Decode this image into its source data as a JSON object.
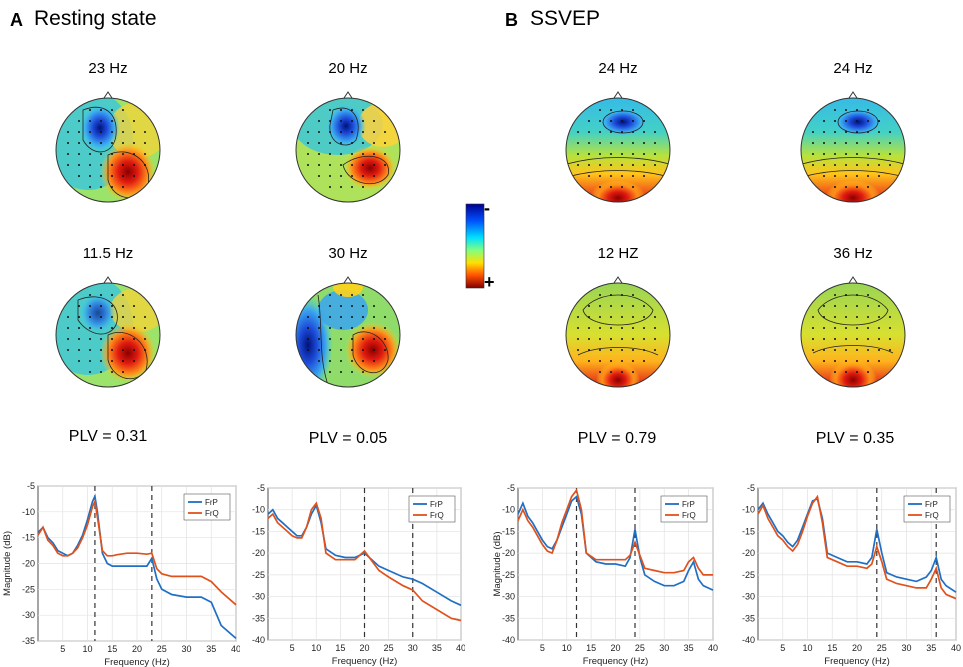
{
  "panels": [
    {
      "letter": "A",
      "title": "Resting state"
    },
    {
      "letter": "B",
      "title": "SSVEP"
    }
  ],
  "maps": [
    {
      "label": "23 Hz",
      "pattern": "A1"
    },
    {
      "label": "20 Hz",
      "pattern": "A2"
    },
    {
      "label": "24 Hz",
      "pattern": "B1"
    },
    {
      "label": "24 Hz",
      "pattern": "B2"
    },
    {
      "label": "11.5 Hz",
      "pattern": "A3"
    },
    {
      "label": "30 Hz",
      "pattern": "A4"
    },
    {
      "label": "12 HZ",
      "pattern": "B3"
    },
    {
      "label": "36 Hz",
      "pattern": "B4"
    }
  ],
  "colorbar": {
    "top_sign": "-",
    "bottom_sign": "+"
  },
  "colors": {
    "FrP": "#1f6fc5",
    "FrQ": "#e0521c"
  },
  "chart_data": [
    {
      "type": "line",
      "plv_label": "PLV = 0.31",
      "xlabel": "Frequency (Hz)",
      "ylabel": "Magnitude (dB)",
      "xlim": [
        0,
        40
      ],
      "ylim": [
        -35,
        -5
      ],
      "xticks": [
        5,
        10,
        15,
        20,
        25,
        30,
        35,
        40
      ],
      "yticks": [
        -5,
        -10,
        -15,
        -20,
        -25,
        -30,
        -35
      ],
      "vlines": [
        11.5,
        23
      ],
      "x": [
        0,
        1,
        2,
        3,
        4,
        5,
        6,
        7,
        8,
        9,
        10,
        11,
        11.5,
        12,
        13,
        14,
        15,
        16,
        18,
        20,
        22,
        23,
        24,
        25,
        27,
        30,
        33,
        35,
        37,
        40
      ],
      "series": [
        {
          "name": "FrP",
          "values": [
            -14,
            -13,
            -15,
            -16,
            -17.5,
            -18,
            -18.5,
            -18,
            -16.5,
            -14.5,
            -11.5,
            -8,
            -7,
            -10,
            -18,
            -20,
            -20.5,
            -20.5,
            -20.5,
            -20.5,
            -20.5,
            -19,
            -23,
            -25,
            -26,
            -26.5,
            -26.5,
            -27.5,
            -32,
            -34.5
          ]
        },
        {
          "name": "FrQ",
          "values": [
            -14.5,
            -13,
            -15.5,
            -16.5,
            -18,
            -18.5,
            -18.5,
            -18,
            -17,
            -15,
            -12.5,
            -9,
            -8,
            -11,
            -17.5,
            -18.5,
            -18.5,
            -18.3,
            -18,
            -18,
            -18.2,
            -18,
            -21,
            -22,
            -22.5,
            -22.5,
            -22.5,
            -23.5,
            -25.5,
            -28
          ]
        }
      ]
    },
    {
      "type": "line",
      "plv_label": "PLV = 0.05",
      "xlabel": "Frequency (Hz)",
      "ylabel": "",
      "xlim": [
        0,
        40
      ],
      "ylim": [
        -40,
        -5
      ],
      "xticks": [
        5,
        10,
        15,
        20,
        25,
        30,
        35,
        40
      ],
      "yticks": [
        -5,
        -10,
        -15,
        -20,
        -25,
        -30,
        -35,
        -40
      ],
      "vlines": [
        20,
        30
      ],
      "x": [
        0,
        1,
        2,
        3,
        4,
        5,
        6,
        7,
        8,
        9,
        10,
        11,
        12,
        14,
        16,
        18,
        20,
        21,
        23,
        25,
        28,
        30,
        32,
        35,
        38,
        40
      ],
      "series": [
        {
          "name": "FrP",
          "values": [
            -11,
            -10,
            -12,
            -13,
            -14,
            -15,
            -16,
            -16,
            -14,
            -11,
            -9,
            -13,
            -19,
            -20.5,
            -21,
            -21,
            -20,
            -21,
            -23,
            -24,
            -25.5,
            -26,
            -27,
            -29,
            -31,
            -32
          ]
        },
        {
          "name": "FrQ",
          "values": [
            -12,
            -11,
            -13,
            -14,
            -15,
            -16,
            -16.5,
            -16.5,
            -14,
            -10,
            -8.5,
            -12,
            -20,
            -21.5,
            -21.5,
            -21.5,
            -19.5,
            -21,
            -24,
            -25.5,
            -27.5,
            -28.5,
            -31,
            -33,
            -35,
            -35.5
          ]
        }
      ]
    },
    {
      "type": "line",
      "plv_label": "PLV = 0.79",
      "xlabel": "Frequency (Hz)",
      "ylabel": "Magnitude (dB)",
      "xlim": [
        0,
        40
      ],
      "ylim": [
        -40,
        -5
      ],
      "xticks": [
        5,
        10,
        15,
        20,
        25,
        30,
        35,
        40
      ],
      "yticks": [
        -5,
        -10,
        -15,
        -20,
        -25,
        -30,
        -35,
        -40
      ],
      "vlines": [
        12,
        24
      ],
      "x": [
        0,
        1,
        2,
        3,
        4,
        5,
        6,
        7,
        8,
        9,
        10,
        11,
        12,
        13,
        14,
        16,
        18,
        20,
        22,
        23,
        24,
        25,
        26,
        28,
        30,
        32,
        34,
        35,
        36,
        37,
        38,
        40
      ],
      "series": [
        {
          "name": "FrP",
          "values": [
            -11,
            -8.5,
            -11.5,
            -13,
            -15,
            -17,
            -18.5,
            -19,
            -17,
            -14,
            -11,
            -8,
            -7,
            -11,
            -20,
            -22,
            -22.5,
            -22.5,
            -23,
            -21,
            -14.5,
            -21,
            -25,
            -26.5,
            -27.5,
            -27.5,
            -26.5,
            -24,
            -22,
            -26,
            -27.5,
            -28.5
          ]
        },
        {
          "name": "FrQ",
          "values": [
            -12.5,
            -10,
            -12.5,
            -14,
            -16,
            -18,
            -19.5,
            -20,
            -17,
            -13,
            -10,
            -7,
            -5.5,
            -10,
            -20,
            -21.5,
            -21.5,
            -21.5,
            -21.5,
            -20.5,
            -17.5,
            -20.5,
            -23.5,
            -24,
            -24.5,
            -24.5,
            -24,
            -22,
            -21,
            -23.5,
            -25,
            -25
          ]
        }
      ]
    },
    {
      "type": "line",
      "plv_label": "PLV = 0.35",
      "xlabel": "Frequency (Hz)",
      "ylabel": "",
      "xlim": [
        0,
        40
      ],
      "ylim": [
        -40,
        -5
      ],
      "xticks": [
        5,
        10,
        15,
        20,
        25,
        30,
        35,
        40
      ],
      "yticks": [
        -5,
        -10,
        -15,
        -20,
        -25,
        -30,
        -35,
        -40
      ],
      "vlines": [
        24,
        36
      ],
      "x": [
        0,
        1,
        2,
        3,
        4,
        5,
        6,
        7,
        8,
        9,
        10,
        11,
        12,
        13,
        14,
        16,
        18,
        20,
        22,
        23,
        24,
        25,
        26,
        28,
        30,
        32,
        34,
        35,
        36,
        37,
        38,
        40
      ],
      "series": [
        {
          "name": "FrP",
          "values": [
            -10,
            -8.5,
            -11,
            -13,
            -15,
            -16,
            -17.5,
            -18.5,
            -17,
            -14,
            -11,
            -8,
            -7.5,
            -12,
            -20,
            -21,
            -22,
            -22,
            -22.5,
            -21,
            -14.5,
            -20,
            -24.5,
            -25.5,
            -26,
            -26.5,
            -25.5,
            -24,
            -21,
            -26,
            -27.5,
            -29
          ]
        },
        {
          "name": "FrQ",
          "values": [
            -11,
            -9,
            -12,
            -14,
            -16,
            -17,
            -18.5,
            -19.5,
            -18,
            -15,
            -11.5,
            -8.5,
            -7,
            -13,
            -21,
            -22,
            -23,
            -23,
            -23.5,
            -22.5,
            -18.5,
            -22,
            -26,
            -27,
            -27.5,
            -28,
            -28,
            -26,
            -23.5,
            -28,
            -29.5,
            -30.5
          ]
        }
      ]
    }
  ]
}
